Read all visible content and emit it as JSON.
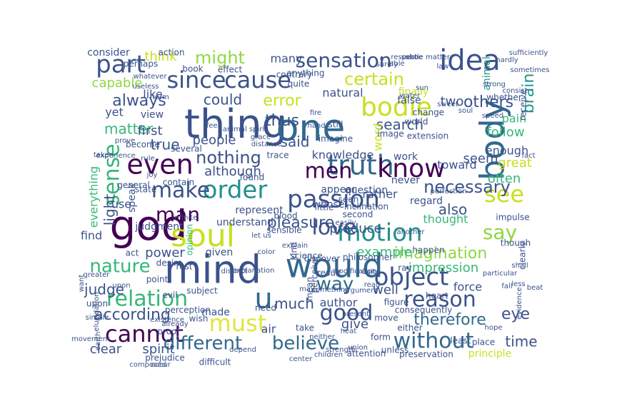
{
  "wordcloud": {
    "palette": {
      "dark_purple": "#440154",
      "indigo": "#3b528b",
      "slate_blue": "#31688e",
      "teal": "#21918c",
      "green": "#35b779",
      "lime": "#90d743",
      "yellow": "#c8e020",
      "light_yellow": "#e0e63a"
    },
    "words": [
      {
        "text": "thing",
        "color": "#3b528b"
      },
      {
        "text": "mind",
        "color": "#3b528b"
      },
      {
        "text": "god",
        "color": "#440154"
      },
      {
        "text": "one",
        "color": "#31688e"
      },
      {
        "text": "would",
        "color": "#31688e"
      },
      {
        "text": "body",
        "color": "#31688e"
      },
      {
        "text": "soul",
        "color": "#c8e020"
      },
      {
        "text": "order",
        "color": "#21918c"
      },
      {
        "text": "idea",
        "color": "#3b528b"
      },
      {
        "text": "truth",
        "color": "#31688e"
      },
      {
        "text": "know",
        "color": "#440154"
      },
      {
        "text": "must",
        "color": "#e0e63a"
      },
      {
        "text": "object",
        "color": "#3b528b"
      },
      {
        "text": "passion",
        "color": "#3b528b"
      },
      {
        "text": "even",
        "color": "#440154"
      },
      {
        "text": "since",
        "color": "#3b528b"
      },
      {
        "text": "cause",
        "color": "#3b528b"
      },
      {
        "text": "part",
        "color": "#3b528b"
      },
      {
        "text": "bodie",
        "color": "#c8e020"
      },
      {
        "text": "sensation",
        "color": "#3b528b"
      },
      {
        "text": "make",
        "color": "#3b528b"
      },
      {
        "text": "without",
        "color": "#31688e"
      },
      {
        "text": "motion",
        "color": "#21918c"
      },
      {
        "text": "cannot",
        "color": "#440154"
      },
      {
        "text": "relation",
        "color": "#35b779"
      },
      {
        "text": "love",
        "color": "#3b528b"
      },
      {
        "text": "good",
        "color": "#3b528b"
      },
      {
        "text": "men",
        "color": "#440154"
      },
      {
        "text": "way",
        "color": "#31688e"
      },
      {
        "text": "reason",
        "color": "#3b528b"
      },
      {
        "text": "see",
        "color": "#c8e020"
      },
      {
        "text": "say",
        "color": "#90d743"
      },
      {
        "text": "might",
        "color": "#90d743"
      },
      {
        "text": "certain",
        "color": "#c8e020"
      },
      {
        "text": "sense",
        "color": "#35b779"
      },
      {
        "text": "nature",
        "color": "#35b779"
      },
      {
        "text": "different",
        "color": "#31688e"
      },
      {
        "text": "believe",
        "color": "#31688e"
      },
      {
        "text": "man",
        "color": "#440154"
      },
      {
        "text": "u",
        "color": "#31688e"
      },
      {
        "text": "error",
        "color": "#c8e020"
      },
      {
        "text": "nothing",
        "color": "#3b528b"
      },
      {
        "text": "necessary",
        "color": "#3b528b"
      },
      {
        "text": "imagination",
        "color": "#90d743"
      },
      {
        "text": "therefore",
        "color": "#31688e"
      },
      {
        "text": "eye",
        "color": "#3b528b"
      },
      {
        "text": "much",
        "color": "#3b528b"
      },
      {
        "text": "pleasure",
        "color": "#3b528b"
      },
      {
        "text": "always",
        "color": "#3b528b"
      },
      {
        "text": "thus",
        "color": "#3b528b"
      },
      {
        "text": "others",
        "color": "#3b528b"
      },
      {
        "text": "brain",
        "color": "#21918c"
      },
      {
        "text": "search",
        "color": "#3b528b"
      },
      {
        "text": "said",
        "color": "#3b528b"
      },
      {
        "text": "could",
        "color": "#3b528b"
      },
      {
        "text": "think",
        "color": "#c8e020"
      },
      {
        "text": "matter",
        "color": "#35b779"
      },
      {
        "text": "first",
        "color": "#3b528b"
      },
      {
        "text": "true",
        "color": "#3b528b"
      },
      {
        "text": "light",
        "color": "#3b528b"
      },
      {
        "text": "capable",
        "color": "#90d743"
      },
      {
        "text": "people",
        "color": "#3b528b"
      },
      {
        "text": "although",
        "color": "#3b528b"
      },
      {
        "text": "knowledge",
        "color": "#3b528b"
      },
      {
        "text": "word",
        "color": "#c8e020"
      },
      {
        "text": "seem",
        "color": "#3b528b"
      },
      {
        "text": "great",
        "color": "#c8e020"
      },
      {
        "text": "pain",
        "color": "#35b779"
      },
      {
        "text": "follow",
        "color": "#35b779"
      },
      {
        "text": "two",
        "color": "#3b528b"
      },
      {
        "text": "enough",
        "color": "#3b528b"
      },
      {
        "text": "often",
        "color": "#35b779"
      },
      {
        "text": "toward",
        "color": "#3b528b"
      },
      {
        "text": "also",
        "color": "#3b528b"
      },
      {
        "text": "thought",
        "color": "#35b779"
      },
      {
        "text": "example",
        "color": "#35b779"
      },
      {
        "text": "rather",
        "color": "#3b528b"
      },
      {
        "text": "produce",
        "color": "#3b528b"
      },
      {
        "text": "impression",
        "color": "#35b779"
      },
      {
        "text": "force",
        "color": "#3b528b"
      },
      {
        "text": "according",
        "color": "#3b528b"
      },
      {
        "text": "judge",
        "color": "#3b528b"
      },
      {
        "text": "well",
        "color": "#3b528b"
      },
      {
        "text": "give",
        "color": "#3b528b"
      },
      {
        "text": "author",
        "color": "#3b528b"
      },
      {
        "text": "time",
        "color": "#3b528b"
      },
      {
        "text": "power",
        "color": "#3b528b"
      },
      {
        "text": "clear",
        "color": "#3b528b"
      },
      {
        "text": "spirit",
        "color": "#3b528b"
      },
      {
        "text": "use",
        "color": "#3b528b"
      },
      {
        "text": "speak",
        "color": "#3b528b"
      },
      {
        "text": "everything",
        "color": "#35b779"
      },
      {
        "text": "like",
        "color": "#3b528b"
      },
      {
        "text": "yet",
        "color": "#3b528b"
      },
      {
        "text": "find",
        "color": "#3b528b"
      },
      {
        "text": "natural",
        "color": "#3b528b"
      },
      {
        "text": "many",
        "color": "#3b528b"
      },
      {
        "text": "view",
        "color": "#3b528b"
      },
      {
        "text": "air",
        "color": "#3b528b"
      },
      {
        "text": "made",
        "color": "#3b528b"
      },
      {
        "text": "given",
        "color": "#3b528b"
      },
      {
        "text": "understand",
        "color": "#3b528b"
      },
      {
        "text": "represent",
        "color": "#3b528b"
      },
      {
        "text": "regard",
        "color": "#3b528b"
      },
      {
        "text": "question",
        "color": "#3b528b"
      },
      {
        "text": "appear",
        "color": "#3b528b"
      },
      {
        "text": "whose",
        "color": "#3b528b"
      },
      {
        "text": "work",
        "color": "#3b528b"
      },
      {
        "text": "never",
        "color": "#3b528b"
      },
      {
        "text": "finally",
        "color": "#c8e020"
      },
      {
        "text": "false",
        "color": "#3b528b"
      },
      {
        "text": "animal",
        "color": "#21918c"
      },
      {
        "text": "consider",
        "color": "#3b528b"
      },
      {
        "text": "perhaps",
        "color": "#3b528b"
      },
      {
        "text": "contrary",
        "color": "#3b528b"
      },
      {
        "text": "action",
        "color": "#3b528b"
      },
      {
        "text": "book",
        "color": "#3b528b"
      },
      {
        "text": "effect",
        "color": "#3b528b"
      },
      {
        "text": "trace",
        "color": "#3b528b"
      },
      {
        "text": "general",
        "color": "#3b528b"
      },
      {
        "text": "judgment",
        "color": "#3b528b"
      },
      {
        "text": "opinion",
        "color": "#35b779"
      },
      {
        "text": "sensible",
        "color": "#3b528b"
      },
      {
        "text": "kind",
        "color": "#3b528b"
      },
      {
        "text": "philosopher",
        "color": "#3b528b"
      },
      {
        "text": "discover",
        "color": "#3b528b"
      },
      {
        "text": "ray",
        "color": "#3b528b"
      },
      {
        "text": "perceive",
        "color": "#3b528b"
      },
      {
        "text": "result",
        "color": "#3b528b"
      },
      {
        "text": "mean",
        "color": "#3b528b"
      },
      {
        "text": "act",
        "color": "#3b528b"
      },
      {
        "text": "desire",
        "color": "#3b528b"
      },
      {
        "text": "rest",
        "color": "#3b528b"
      },
      {
        "text": "point",
        "color": "#3b528b"
      },
      {
        "text": "subject",
        "color": "#3b528b"
      },
      {
        "text": "evil",
        "color": "#3b528b"
      },
      {
        "text": "upon",
        "color": "#3b528b"
      },
      {
        "text": "perception",
        "color": "#3b528b"
      },
      {
        "text": "wish",
        "color": "#3b528b"
      },
      {
        "text": "proof",
        "color": "#3b528b"
      },
      {
        "text": "need",
        "color": "#3b528b"
      },
      {
        "text": "take",
        "color": "#3b528b"
      },
      {
        "text": "figure",
        "color": "#3b528b"
      },
      {
        "text": "form",
        "color": "#3b528b"
      },
      {
        "text": "move",
        "color": "#3b528b"
      },
      {
        "text": "consequently",
        "color": "#3b528b"
      },
      {
        "text": "least",
        "color": "#3b528b"
      },
      {
        "text": "place",
        "color": "#3b528b"
      },
      {
        "text": "principle",
        "color": "#c8e020"
      },
      {
        "text": "either",
        "color": "#3b528b"
      },
      {
        "text": "heart",
        "color": "#3b528b"
      },
      {
        "text": "image",
        "color": "#3b528b"
      },
      {
        "text": "change",
        "color": "#3b528b"
      },
      {
        "text": "world",
        "color": "#3b528b"
      },
      {
        "text": "whether",
        "color": "#3b528b"
      },
      {
        "text": "receive",
        "color": "#3b528b"
      },
      {
        "text": "sometimes",
        "color": "#3b528b"
      },
      {
        "text": "strong",
        "color": "#3b528b"
      },
      {
        "text": "sufficiently",
        "color": "#3b528b"
      },
      {
        "text": "extension",
        "color": "#3b528b"
      },
      {
        "text": "science",
        "color": "#3b528b"
      },
      {
        "text": "happen",
        "color": "#3b528b"
      },
      {
        "text": "impulse",
        "color": "#3b528b"
      },
      {
        "text": "though",
        "color": "#3b528b"
      },
      {
        "text": "clearly",
        "color": "#3b528b"
      },
      {
        "text": "difficult",
        "color": "#3b528b"
      },
      {
        "text": "prejudice",
        "color": "#3b528b"
      },
      {
        "text": "attention",
        "color": "#3b528b"
      },
      {
        "text": "unless",
        "color": "#3b528b"
      },
      {
        "text": "preservation",
        "color": "#3b528b"
      },
      {
        "text": "anything",
        "color": "#3b528b"
      },
      {
        "text": "quite",
        "color": "#3b528b"
      },
      {
        "text": "still",
        "color": "#3b528b"
      },
      {
        "text": "imagine",
        "color": "#3b528b"
      },
      {
        "text": "seen",
        "color": "#3b528b"
      },
      {
        "text": "little",
        "color": "#3b528b"
      },
      {
        "text": "blood",
        "color": "#3b528b"
      },
      {
        "text": "become",
        "color": "#3b528b"
      },
      {
        "text": "several",
        "color": "#3b528b"
      },
      {
        "text": "found",
        "color": "#3b528b"
      },
      {
        "text": "contain",
        "color": "#3b528b"
      },
      {
        "text": "state",
        "color": "#3b528b"
      },
      {
        "text": "feel",
        "color": "#3b528b"
      },
      {
        "text": "animal spirit",
        "color": "#3b528b"
      },
      {
        "text": "distance",
        "color": "#3b528b"
      },
      {
        "text": "elucidation",
        "color": "#3b528b"
      },
      {
        "text": "fire",
        "color": "#3b528b"
      },
      {
        "text": "hand",
        "color": "#3b528b"
      },
      {
        "text": "grace",
        "color": "#3b528b"
      },
      {
        "text": "second",
        "color": "#3b528b"
      },
      {
        "text": "inclination",
        "color": "#3b528b"
      },
      {
        "text": "another",
        "color": "#3b528b"
      },
      {
        "text": "particular",
        "color": "#3b528b"
      },
      {
        "text": "water",
        "color": "#3b528b"
      },
      {
        "text": "sun",
        "color": "#3b528b"
      },
      {
        "text": "soul",
        "color": "#3b528b"
      },
      {
        "text": "infinite",
        "color": "#3b528b"
      },
      {
        "text": "upon",
        "color": "#3b528b"
      },
      {
        "text": "want",
        "color": "#3b528b"
      },
      {
        "text": "greater",
        "color": "#3b528b"
      },
      {
        "text": "movement",
        "color": "#3b528b"
      },
      {
        "text": "earth",
        "color": "#3b528b"
      },
      {
        "text": "simple",
        "color": "#3b528b"
      },
      {
        "text": "taken",
        "color": "#3b528b"
      },
      {
        "text": "experience",
        "color": "#3b528b"
      },
      {
        "text": "rule",
        "color": "#3b528b"
      },
      {
        "text": "joy",
        "color": "#3b528b"
      },
      {
        "text": "prove",
        "color": "#3b528b"
      },
      {
        "text": "term",
        "color": "#3b528b"
      },
      {
        "text": "useless",
        "color": "#3b528b"
      },
      {
        "text": "whatever",
        "color": "#3b528b"
      },
      {
        "text": "color",
        "color": "#3b528b"
      },
      {
        "text": "let us",
        "color": "#3b528b"
      },
      {
        "text": "easily",
        "color": "#3b528b"
      },
      {
        "text": "explain",
        "color": "#3b528b"
      },
      {
        "text": "depend",
        "color": "#3b528b"
      },
      {
        "text": "may",
        "color": "#3b528b"
      },
      {
        "text": "something",
        "color": "#3b528b"
      },
      {
        "text": "neither",
        "color": "#3b528b"
      },
      {
        "text": "children",
        "color": "#3b528b"
      },
      {
        "text": "strength",
        "color": "#3b528b"
      },
      {
        "text": "present",
        "color": "#3b528b"
      },
      {
        "text": "heat",
        "color": "#3b528b"
      },
      {
        "text": "center",
        "color": "#3b528b"
      },
      {
        "text": "modification",
        "color": "#3b528b"
      },
      {
        "text": "read",
        "color": "#3b528b"
      },
      {
        "text": "unity",
        "color": "#3b528b"
      },
      {
        "text": "argument",
        "color": "#3b528b"
      },
      {
        "text": "union",
        "color": "#3b528b"
      },
      {
        "text": "hope",
        "color": "#3b528b"
      },
      {
        "text": "evidence",
        "color": "#3b528b"
      },
      {
        "text": "fall",
        "color": "#3b528b"
      },
      {
        "text": "shall",
        "color": "#3b528b"
      },
      {
        "text": "perfection",
        "color": "#3b528b"
      },
      {
        "text": "able",
        "color": "#3b528b"
      },
      {
        "text": "e",
        "color": "#3b528b"
      },
      {
        "text": "law",
        "color": "#3b528b"
      },
      {
        "text": "sweet",
        "color": "#3b528b"
      },
      {
        "text": "speed",
        "color": "#3b528b"
      },
      {
        "text": "consist",
        "color": "#3b528b"
      },
      {
        "text": "fact",
        "color": "#3b528b"
      },
      {
        "text": "less",
        "color": "#3b528b"
      },
      {
        "text": "beat",
        "color": "#3b528b"
      },
      {
        "text": "distinct",
        "color": "#3b528b"
      },
      {
        "text": "explanation",
        "color": "#3b528b"
      },
      {
        "text": "existence",
        "color": "#3b528b"
      },
      {
        "text": "already",
        "color": "#3b528b"
      },
      {
        "text": "occur",
        "color": "#3b528b"
      },
      {
        "text": "composed",
        "color": "#3b528b"
      },
      {
        "text": "surely",
        "color": "#3b528b"
      },
      {
        "text": "respect",
        "color": "#3b528b"
      },
      {
        "text": "shoe",
        "color": "#3b528b"
      },
      {
        "text": "subtle matter",
        "color": "#3b528b"
      },
      {
        "text": "hardly",
        "color": "#3b528b"
      },
      {
        "text": "among",
        "color": "#3b528b"
      },
      {
        "text": "entirely",
        "color": "#3b528b"
      },
      {
        "text": "faith",
        "color": "#3b528b"
      },
      {
        "text": "vain",
        "color": "#3b528b"
      },
      {
        "text": "enlighten",
        "color": "#3b528b"
      },
      {
        "text": "remain",
        "color": "#3b528b"
      }
    ]
  }
}
